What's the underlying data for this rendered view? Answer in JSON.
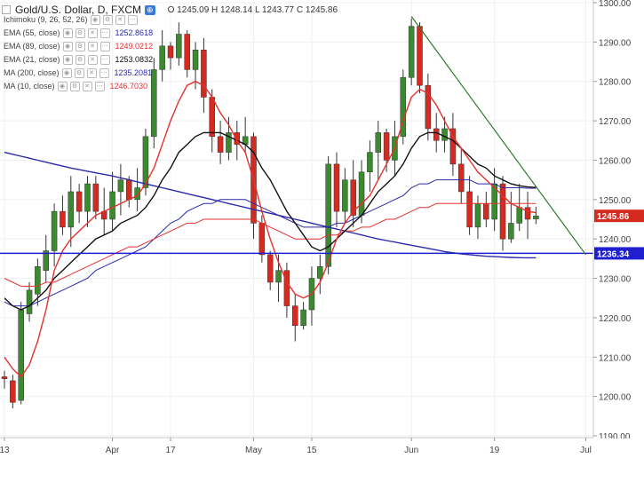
{
  "header": {
    "symbol_title": "Gold/U.S. Dollar, D, FXCM",
    "ohlc_label": "O 1245.09  H 1248.14  L 1243.77  C 1245.86",
    "compare_icon": "compare-icon"
  },
  "indicators": [
    {
      "label": "Ichimoku (9, 26, 52, 26)",
      "value": "",
      "color": "#999999"
    },
    {
      "label": "EMA (55, close)",
      "value": "1252.8618",
      "color": "#2a2aa8"
    },
    {
      "label": "EMA (89, close)",
      "value": "1249.0212",
      "color": "#e53030"
    },
    {
      "label": "EMA (21, close)",
      "value": "1253.0832",
      "color": "#111111"
    },
    {
      "label": "MA (200, close)",
      "value": "1235.2081",
      "color": "#2a2aa8"
    },
    {
      "label": "MA (10, close)",
      "value": "1246.7030",
      "color": "#e53030"
    }
  ],
  "price_axis": {
    "ticks": [
      "1300.00",
      "1290.00",
      "1280.00",
      "1270.00",
      "1260.00",
      "1250.00",
      "1240.00",
      "1230.00",
      "1220.00",
      "1210.00",
      "1200.00",
      "1190.00"
    ],
    "current_label": "1245.86",
    "support_label": "1236.34"
  },
  "time_axis": {
    "ticks": [
      "13",
      "Apr",
      "17",
      "May",
      "15",
      "Jun",
      "19",
      "Jul"
    ]
  },
  "chart_data": {
    "type": "candlestick",
    "ylim": [
      1190,
      1300
    ],
    "colors": {
      "up": "#3a8a2e",
      "down": "#d42a1f",
      "ma10": "#e53030",
      "ema21": "#111111",
      "ema89": "#e53030",
      "ma200": "#2a2aa8",
      "ema55": "#2a2aa8",
      "trend": "#2e7d2e",
      "support": "#1f1fd0"
    },
    "candles": [
      [
        1205.0,
        1206.5,
        1202.0,
        1204.5
      ],
      [
        1204.0,
        1205.5,
        1197.0,
        1198.5
      ],
      [
        1199.0,
        1224.0,
        1198.0,
        1222.0
      ],
      [
        1221.0,
        1229.0,
        1219.0,
        1227.0
      ],
      [
        1226.0,
        1235.0,
        1223.0,
        1233.0
      ],
      [
        1232.0,
        1241.0,
        1229.0,
        1237.0
      ],
      [
        1237.0,
        1249.0,
        1233.0,
        1247.0
      ],
      [
        1247.0,
        1251.0,
        1241.0,
        1243.0
      ],
      [
        1243.0,
        1256.0,
        1238.0,
        1252.0
      ],
      [
        1252.0,
        1254.0,
        1244.0,
        1247.0
      ],
      [
        1247.0,
        1256.0,
        1243.0,
        1254.0
      ],
      [
        1254.0,
        1256.0,
        1245.0,
        1247.0
      ],
      [
        1247.0,
        1253.0,
        1241.0,
        1245.0
      ],
      [
        1245.0,
        1257.0,
        1242.0,
        1252.0
      ],
      [
        1252.0,
        1259.0,
        1246.0,
        1255.0
      ],
      [
        1255.0,
        1256.0,
        1248.0,
        1250.0
      ],
      [
        1250.0,
        1258.0,
        1247.0,
        1253.0
      ],
      [
        1253.0,
        1268.0,
        1251.0,
        1266.0
      ],
      [
        1266.0,
        1286.0,
        1263.0,
        1283.0
      ],
      [
        1283.0,
        1293.0,
        1280.0,
        1289.0
      ],
      [
        1289.0,
        1290.0,
        1283.0,
        1286.0
      ],
      [
        1286.0,
        1295.0,
        1284.0,
        1292.0
      ],
      [
        1292.0,
        1293.0,
        1281.0,
        1283.0
      ],
      [
        1283.0,
        1290.0,
        1278.0,
        1288.0
      ],
      [
        1288.0,
        1291.0,
        1272.0,
        1276.0
      ],
      [
        1276.0,
        1278.0,
        1262.0,
        1266.0
      ],
      [
        1266.0,
        1270.0,
        1259.0,
        1262.0
      ],
      [
        1262.0,
        1271.0,
        1260.0,
        1267.0
      ],
      [
        1267.0,
        1270.0,
        1260.0,
        1264.0
      ],
      [
        1264.0,
        1271.0,
        1262.0,
        1266.0
      ],
      [
        1266.0,
        1267.0,
        1240.0,
        1244.0
      ],
      [
        1244.0,
        1246.0,
        1234.0,
        1236.0
      ],
      [
        1236.0,
        1237.0,
        1227.0,
        1229.0
      ],
      [
        1229.0,
        1236.0,
        1224.0,
        1232.0
      ],
      [
        1232.0,
        1234.0,
        1220.0,
        1223.0
      ],
      [
        1223.0,
        1226.0,
        1214.0,
        1218.0
      ],
      [
        1218.0,
        1224.0,
        1217.0,
        1222.0
      ],
      [
        1222.0,
        1233.0,
        1218.0,
        1230.0
      ],
      [
        1230.0,
        1236.0,
        1226.0,
        1233.0
      ],
      [
        1233.0,
        1261.0,
        1231.0,
        1259.0
      ],
      [
        1259.0,
        1262.0,
        1243.0,
        1247.0
      ],
      [
        1247.0,
        1258.0,
        1244.0,
        1255.0
      ],
      [
        1255.0,
        1260.0,
        1243.0,
        1246.0
      ],
      [
        1246.0,
        1260.0,
        1244.0,
        1257.0
      ],
      [
        1257.0,
        1265.0,
        1252.0,
        1262.0
      ],
      [
        1262.0,
        1270.0,
        1255.0,
        1267.0
      ],
      [
        1267.0,
        1268.0,
        1257.0,
        1260.0
      ],
      [
        1260.0,
        1270.0,
        1256.0,
        1266.0
      ],
      [
        1266.0,
        1283.0,
        1264.0,
        1281.0
      ],
      [
        1281.0,
        1296.0,
        1279.0,
        1294.0
      ],
      [
        1294.0,
        1295.0,
        1277.0,
        1279.0
      ],
      [
        1279.0,
        1282.0,
        1265.0,
        1268.0
      ],
      [
        1268.0,
        1272.0,
        1262.0,
        1265.0
      ],
      [
        1265.0,
        1271.0,
        1262.0,
        1268.0
      ],
      [
        1268.0,
        1272.0,
        1256.0,
        1259.0
      ],
      [
        1259.0,
        1263.0,
        1249.0,
        1252.0
      ],
      [
        1252.0,
        1256.0,
        1241.0,
        1243.0
      ],
      [
        1243.0,
        1251.0,
        1240.0,
        1249.0
      ],
      [
        1249.0,
        1252.0,
        1243.0,
        1245.0
      ],
      [
        1245.0,
        1258.0,
        1242.0,
        1254.0
      ],
      [
        1254.0,
        1256.0,
        1237.0,
        1240.0
      ],
      [
        1240.0,
        1252.0,
        1239.0,
        1244.0
      ],
      [
        1244.0,
        1254.0,
        1242.0,
        1248.0
      ],
      [
        1248.0,
        1252.0,
        1240.0,
        1245.0
      ],
      [
        1245.09,
        1248.14,
        1243.77,
        1245.86
      ]
    ],
    "ma10": [
      1210,
      1207,
      1205,
      1208,
      1214,
      1222,
      1232,
      1237,
      1240,
      1242,
      1244,
      1246,
      1247,
      1248,
      1249,
      1250,
      1251,
      1254,
      1258,
      1264,
      1270,
      1275,
      1279,
      1280,
      1279,
      1276,
      1272,
      1269,
      1265,
      1262,
      1255,
      1247,
      1240,
      1234,
      1229,
      1226,
      1225,
      1226,
      1229,
      1234,
      1240,
      1244,
      1247,
      1249,
      1251,
      1255,
      1259,
      1263,
      1270,
      1276,
      1278,
      1277,
      1274,
      1270,
      1266,
      1263,
      1260,
      1257,
      1255,
      1253,
      1251,
      1249,
      1248,
      1247,
      1246.7
    ],
    "ema21": [
      1225,
      1223,
      1222,
      1223,
      1225,
      1227,
      1230,
      1232,
      1234,
      1236,
      1238,
      1240,
      1241,
      1242,
      1244,
      1245,
      1246,
      1248,
      1251,
      1255,
      1258,
      1262,
      1264,
      1266,
      1267,
      1267,
      1267,
      1266,
      1265,
      1264,
      1262,
      1258,
      1255,
      1251,
      1247,
      1244,
      1241,
      1238,
      1237,
      1238,
      1240,
      1242,
      1244,
      1246,
      1249,
      1252,
      1254,
      1256,
      1259,
      1263,
      1266,
      1267,
      1267,
      1266,
      1265,
      1263,
      1261,
      1259,
      1258,
      1256,
      1255,
      1254,
      1253.5,
      1253.2,
      1253.08
    ],
    "ema89": [
      1230,
      1229,
      1228,
      1228,
      1228,
      1229,
      1229,
      1230,
      1231,
      1232,
      1233,
      1234,
      1235,
      1236,
      1237,
      1238,
      1238,
      1239,
      1240,
      1241,
      1242,
      1243,
      1244,
      1244,
      1245,
      1245,
      1245,
      1245,
      1245,
      1245,
      1245,
      1244,
      1243,
      1242,
      1241,
      1240,
      1240,
      1240,
      1240,
      1241,
      1241,
      1242,
      1242,
      1243,
      1243,
      1244,
      1245,
      1245,
      1246,
      1247,
      1248,
      1248,
      1249,
      1249,
      1249,
      1249,
      1249,
      1249,
      1249,
      1249,
      1249,
      1249,
      1249,
      1249,
      1249.02
    ],
    "ema55": [
      1224,
      1223,
      1223,
      1223,
      1224,
      1225,
      1226,
      1227,
      1228,
      1229,
      1230,
      1232,
      1233,
      1234,
      1235,
      1236,
      1237,
      1238,
      1240,
      1242,
      1244,
      1245,
      1247,
      1248,
      1249,
      1249,
      1250,
      1250,
      1250,
      1250,
      1249,
      1248,
      1247,
      1246,
      1245,
      1244,
      1243,
      1243,
      1243,
      1243,
      1244,
      1244,
      1245,
      1246,
      1247,
      1248,
      1249,
      1250,
      1251,
      1253,
      1254,
      1254,
      1255,
      1255,
      1255,
      1255,
      1255,
      1254,
      1254,
      1254,
      1253,
      1253,
      1253,
      1252.9,
      1252.86
    ],
    "ma200": [
      1262,
      1261.5,
      1261,
      1260.5,
      1260,
      1259.5,
      1259,
      1258.5,
      1258,
      1257.6,
      1257.2,
      1256.8,
      1256.4,
      1256,
      1255.5,
      1255,
      1254.5,
      1254,
      1253.5,
      1253,
      1252.5,
      1252,
      1251.5,
      1251,
      1250.5,
      1250,
      1249.5,
      1249,
      1248.5,
      1248,
      1247.5,
      1247,
      1246.5,
      1246,
      1245.5,
      1245,
      1244.5,
      1244,
      1243.5,
      1243,
      1242.5,
      1242,
      1241.5,
      1241,
      1240.5,
      1240,
      1239.6,
      1239.2,
      1238.8,
      1238.4,
      1238,
      1237.6,
      1237.2,
      1236.8,
      1236.5,
      1236.2,
      1236,
      1235.8,
      1235.6,
      1235.5,
      1235.4,
      1235.3,
      1235.25,
      1235.22,
      1235.21
    ],
    "trendline": {
      "from_index": 49,
      "from_price": 1296.5,
      "to_index": 70,
      "to_price": 1236.0
    },
    "support_level": 1236.34
  }
}
